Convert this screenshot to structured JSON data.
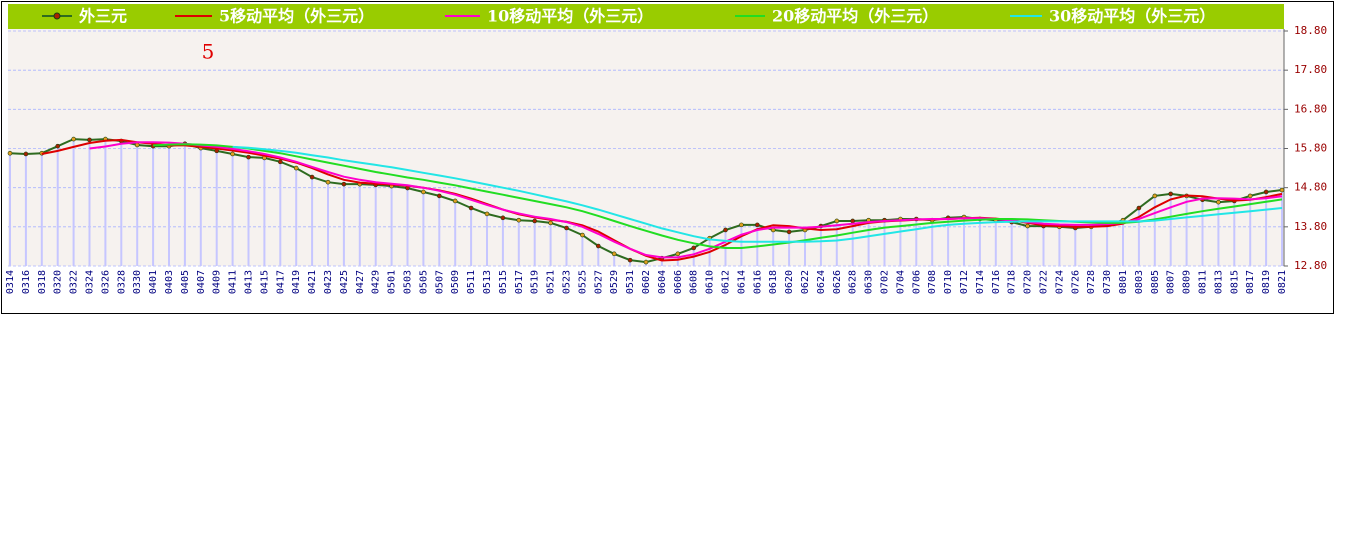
{
  "chart_data": {
    "type": "line",
    "annotation": "5",
    "categories": [
      "0314",
      "0316",
      "0318",
      "0320",
      "0322",
      "0324",
      "0326",
      "0328",
      "0330",
      "0401",
      "0403",
      "0405",
      "0407",
      "0409",
      "0411",
      "0413",
      "0415",
      "0417",
      "0419",
      "0421",
      "0423",
      "0425",
      "0427",
      "0429",
      "0501",
      "0503",
      "0505",
      "0507",
      "0509",
      "0511",
      "0513",
      "0515",
      "0517",
      "0519",
      "0521",
      "0523",
      "0525",
      "0527",
      "0529",
      "0531",
      "0602",
      "0604",
      "0606",
      "0608",
      "0610",
      "0612",
      "0614",
      "0616",
      "0618",
      "0620",
      "0622",
      "0624",
      "0626",
      "0628",
      "0630",
      "0702",
      "0704",
      "0706",
      "0708",
      "0710",
      "0712",
      "0714",
      "0716",
      "0718",
      "0720",
      "0722",
      "0724",
      "0726",
      "0728",
      "0730",
      "0801",
      "0803",
      "0805",
      "0807",
      "0809",
      "0811",
      "0813",
      "0815",
      "0817",
      "0819",
      "0821"
    ],
    "series": [
      {
        "name": "外三元",
        "color": "#2e6b1f",
        "marker": true,
        "bars": true,
        "values": [
          15.68,
          15.66,
          15.68,
          15.86,
          16.04,
          16.02,
          16.04,
          15.99,
          15.89,
          15.86,
          15.86,
          15.92,
          15.81,
          15.74,
          15.66,
          15.58,
          15.56,
          15.46,
          15.3,
          15.07,
          14.94,
          14.89,
          14.89,
          14.87,
          14.84,
          14.79,
          14.69,
          14.59,
          14.46,
          14.28,
          14.13,
          14.03,
          13.97,
          13.95,
          13.9,
          13.77,
          13.59,
          13.31,
          13.11,
          12.95,
          12.9,
          13.0,
          13.11,
          13.26,
          13.51,
          13.72,
          13.85,
          13.85,
          13.72,
          13.67,
          13.72,
          13.82,
          13.95,
          13.95,
          13.97,
          13.97,
          14.0,
          14.0,
          13.97,
          14.03,
          14.05,
          14.0,
          13.97,
          13.92,
          13.82,
          13.82,
          13.8,
          13.77,
          13.8,
          13.85,
          13.97,
          14.28,
          14.59,
          14.64,
          14.59,
          14.49,
          14.43,
          14.46,
          14.59,
          14.69,
          14.74
        ]
      },
      {
        "name": "5移动平均（外三元）",
        "color": "#dd0000",
        "values": [
          null,
          null,
          15.66,
          15.74,
          15.84,
          15.94,
          16.0,
          16.02,
          15.96,
          15.92,
          15.88,
          15.88,
          15.84,
          15.8,
          15.75,
          15.69,
          15.62,
          15.54,
          15.44,
          15.3,
          15.14,
          15.0,
          14.93,
          14.9,
          14.88,
          14.85,
          14.8,
          14.73,
          14.64,
          14.52,
          14.38,
          14.24,
          14.12,
          14.04,
          13.98,
          13.93,
          13.84,
          13.68,
          13.46,
          13.24,
          13.06,
          12.94,
          12.96,
          13.04,
          13.16,
          13.34,
          13.56,
          13.74,
          13.84,
          13.82,
          13.76,
          13.72,
          13.74,
          13.82,
          13.9,
          13.94,
          13.96,
          13.98,
          13.99,
          14.0,
          14.02,
          14.03,
          14.01,
          13.97,
          13.9,
          13.84,
          13.82,
          13.8,
          13.8,
          13.82,
          13.88,
          14.05,
          14.3,
          14.5,
          14.6,
          14.58,
          14.52,
          14.47,
          14.49,
          14.56,
          14.64
        ]
      },
      {
        "name": "10移动平均（外三元）",
        "color": "#ff00cc",
        "values": [
          null,
          null,
          null,
          null,
          null,
          15.8,
          15.85,
          15.92,
          15.96,
          15.96,
          15.95,
          15.92,
          15.88,
          15.84,
          15.79,
          15.73,
          15.66,
          15.57,
          15.46,
          15.33,
          15.2,
          15.08,
          15.0,
          14.94,
          14.9,
          14.86,
          14.8,
          14.72,
          14.62,
          14.49,
          14.36,
          14.24,
          14.14,
          14.06,
          14.0,
          13.92,
          13.8,
          13.62,
          13.42,
          13.24,
          13.08,
          13.02,
          13.02,
          13.1,
          13.24,
          13.42,
          13.6,
          13.72,
          13.78,
          13.78,
          13.78,
          13.8,
          13.84,
          13.88,
          13.92,
          13.95,
          13.97,
          13.99,
          14.0,
          14.0,
          14.02,
          14.02,
          14.0,
          13.96,
          13.92,
          13.88,
          13.86,
          13.85,
          13.85,
          13.87,
          13.9,
          14.0,
          14.15,
          14.3,
          14.44,
          14.52,
          14.53,
          14.52,
          14.5,
          14.53,
          14.58
        ]
      },
      {
        "name": "20移动平均（外三元）",
        "color": "#22dd22",
        "values": [
          null,
          null,
          null,
          null,
          null,
          null,
          null,
          null,
          null,
          15.88,
          15.9,
          15.91,
          15.9,
          15.88,
          15.84,
          15.8,
          15.74,
          15.68,
          15.6,
          15.52,
          15.44,
          15.36,
          15.28,
          15.2,
          15.13,
          15.06,
          15.0,
          14.93,
          14.86,
          14.78,
          14.7,
          14.62,
          14.54,
          14.46,
          14.38,
          14.3,
          14.2,
          14.08,
          13.95,
          13.82,
          13.7,
          13.58,
          13.47,
          13.38,
          13.3,
          13.26,
          13.26,
          13.3,
          13.35,
          13.4,
          13.46,
          13.52,
          13.58,
          13.65,
          13.72,
          13.78,
          13.82,
          13.86,
          13.9,
          13.93,
          13.96,
          13.98,
          14.0,
          14.0,
          13.99,
          13.97,
          13.95,
          13.93,
          13.91,
          13.9,
          13.9,
          13.93,
          13.99,
          14.06,
          14.13,
          14.2,
          14.26,
          14.32,
          14.38,
          14.44,
          14.5
        ]
      },
      {
        "name": "30移动平均（外三元）",
        "color": "#22e6e6",
        "values": [
          null,
          null,
          null,
          null,
          null,
          null,
          null,
          null,
          null,
          null,
          null,
          null,
          null,
          null,
          15.84,
          15.82,
          15.78,
          15.74,
          15.69,
          15.63,
          15.57,
          15.5,
          15.44,
          15.38,
          15.32,
          15.25,
          15.18,
          15.11,
          15.04,
          14.96,
          14.88,
          14.8,
          14.72,
          14.63,
          14.54,
          14.45,
          14.35,
          14.24,
          14.12,
          14.0,
          13.88,
          13.76,
          13.66,
          13.56,
          13.48,
          13.44,
          13.42,
          13.42,
          13.42,
          13.42,
          13.42,
          13.43,
          13.45,
          13.5,
          13.56,
          13.62,
          13.68,
          13.74,
          13.8,
          13.85,
          13.88,
          13.9,
          13.92,
          13.93,
          13.94,
          13.94,
          13.94,
          13.94,
          13.94,
          13.94,
          13.94,
          13.94,
          13.96,
          14.0,
          14.04,
          14.08,
          14.12,
          14.16,
          14.2,
          14.24,
          14.28
        ]
      }
    ],
    "ylim": [
      12.8,
      18.8
    ],
    "yticks": [
      {
        "value": 12.8,
        "label": "12.80"
      },
      {
        "value": 13.8,
        "label": "13.80"
      },
      {
        "value": 14.8,
        "label": "14.80"
      },
      {
        "value": 15.8,
        "label": "15.80"
      },
      {
        "value": 16.8,
        "label": "16.80"
      },
      {
        "value": 17.8,
        "label": "17.80"
      },
      {
        "value": 18.8,
        "label": "18.80"
      }
    ],
    "grid": true,
    "legend_position": "top"
  }
}
